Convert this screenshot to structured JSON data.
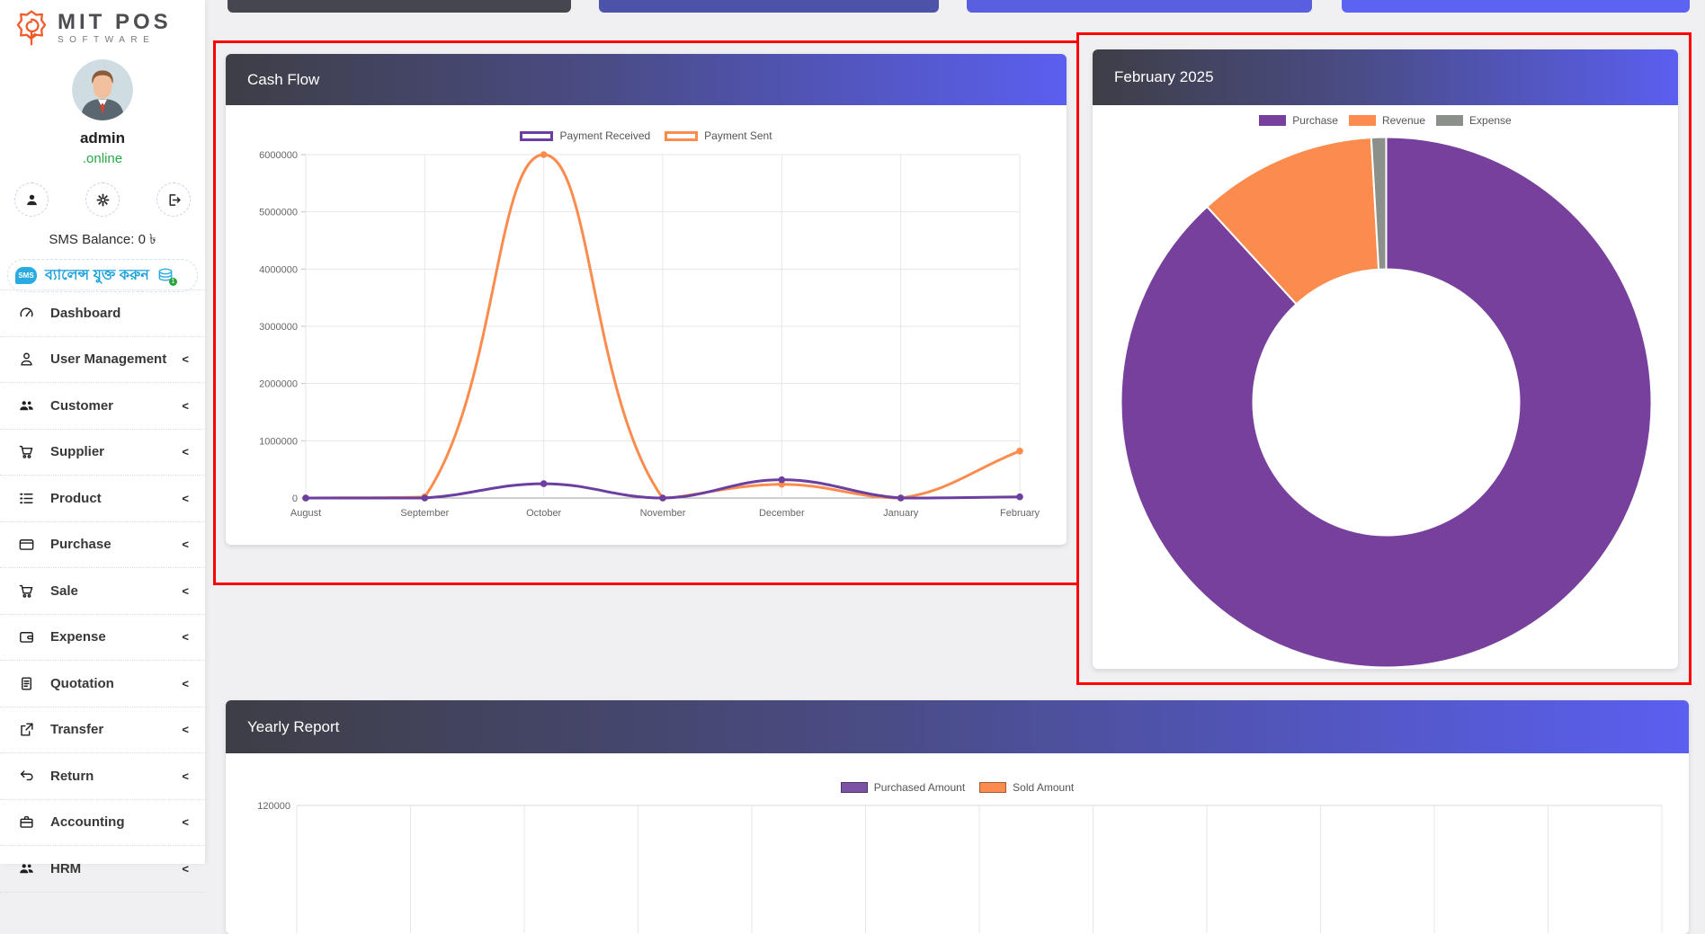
{
  "app": {
    "brand_line1": "MIT POS",
    "brand_line2": "SOFTWARE"
  },
  "sidebar": {
    "user": {
      "name": "admin",
      "status": ".online"
    },
    "sms_balance_label": "SMS Balance: 0 ৳",
    "sms_badge": "SMS",
    "add_balance_label": "ব্যালেন্স যুক্ত করুন",
    "menu": [
      {
        "label": "Dashboard",
        "icon": "speedometer-icon",
        "chevron": false
      },
      {
        "label": "User Management",
        "icon": "user-icon",
        "chevron": true
      },
      {
        "label": "Customer",
        "icon": "customers-icon",
        "chevron": true
      },
      {
        "label": "Supplier",
        "icon": "cart-icon",
        "chevron": true
      },
      {
        "label": "Product",
        "icon": "list-icon",
        "chevron": true
      },
      {
        "label": "Purchase",
        "icon": "credit-card-icon",
        "chevron": true
      },
      {
        "label": "Sale",
        "icon": "cart-icon",
        "chevron": true
      },
      {
        "label": "Expense",
        "icon": "wallet-icon",
        "chevron": true
      },
      {
        "label": "Quotation",
        "icon": "document-icon",
        "chevron": true
      },
      {
        "label": "Transfer",
        "icon": "share-icon",
        "chevron": true
      },
      {
        "label": "Return",
        "icon": "undo-icon",
        "chevron": true
      },
      {
        "label": "Accounting",
        "icon": "briefcase-icon",
        "chevron": true
      },
      {
        "label": "HRM",
        "icon": "customers-icon",
        "chevron": true
      }
    ]
  },
  "cards": {
    "cash_flow": {
      "title": "Cash Flow"
    },
    "pie": {
      "title": "February 2025"
    },
    "yearly": {
      "title": "Yearly Report"
    }
  },
  "chart_data": [
    {
      "type": "line",
      "title": "Cash Flow",
      "x": [
        "August",
        "September",
        "October",
        "November",
        "December",
        "January",
        "February"
      ],
      "series": [
        {
          "name": "Payment Received",
          "color": "#6B3FA0",
          "values": [
            0,
            0,
            250000,
            0,
            320000,
            0,
            20000
          ]
        },
        {
          "name": "Payment Sent",
          "color": "#FB8C4D",
          "values": [
            0,
            20000,
            6000000,
            0,
            240000,
            0,
            820000
          ]
        }
      ],
      "ylim": [
        0,
        6000000
      ],
      "yticks": [
        0,
        1000000,
        2000000,
        3000000,
        4000000,
        5000000,
        6000000
      ],
      "grid": true,
      "legend_position": "top",
      "line_style": "smooth"
    },
    {
      "type": "pie",
      "title": "February 2025",
      "donut": true,
      "labels": [
        "Purchase",
        "Revenue",
        "Expense"
      ],
      "values": [
        88.2,
        10.9,
        0.9
      ],
      "colors": [
        "#77409C",
        "#FB8C4D",
        "#8B908B"
      ],
      "legend_position": "top"
    },
    {
      "type": "bar",
      "title": "Yearly Report",
      "series": [
        {
          "name": "Purchased Amount",
          "color": "#7B52A5"
        },
        {
          "name": "Sold Amount",
          "color": "#FB8C4D"
        }
      ],
      "visible_ytick": 120000,
      "x_gridline_count": 13,
      "legend_position": "top"
    }
  ],
  "colors": {
    "header_gradient_left": "#3E3E46",
    "header_gradient_right": "#5A5FF0",
    "annotation_red": "#FE0000",
    "line_purple": "#6B3FA0",
    "line_orange": "#FB8C4D",
    "donut_purple": "#77409C",
    "donut_gray": "#8B908B",
    "status_green": "#28a745",
    "sms_blue": "#29ABE2"
  }
}
